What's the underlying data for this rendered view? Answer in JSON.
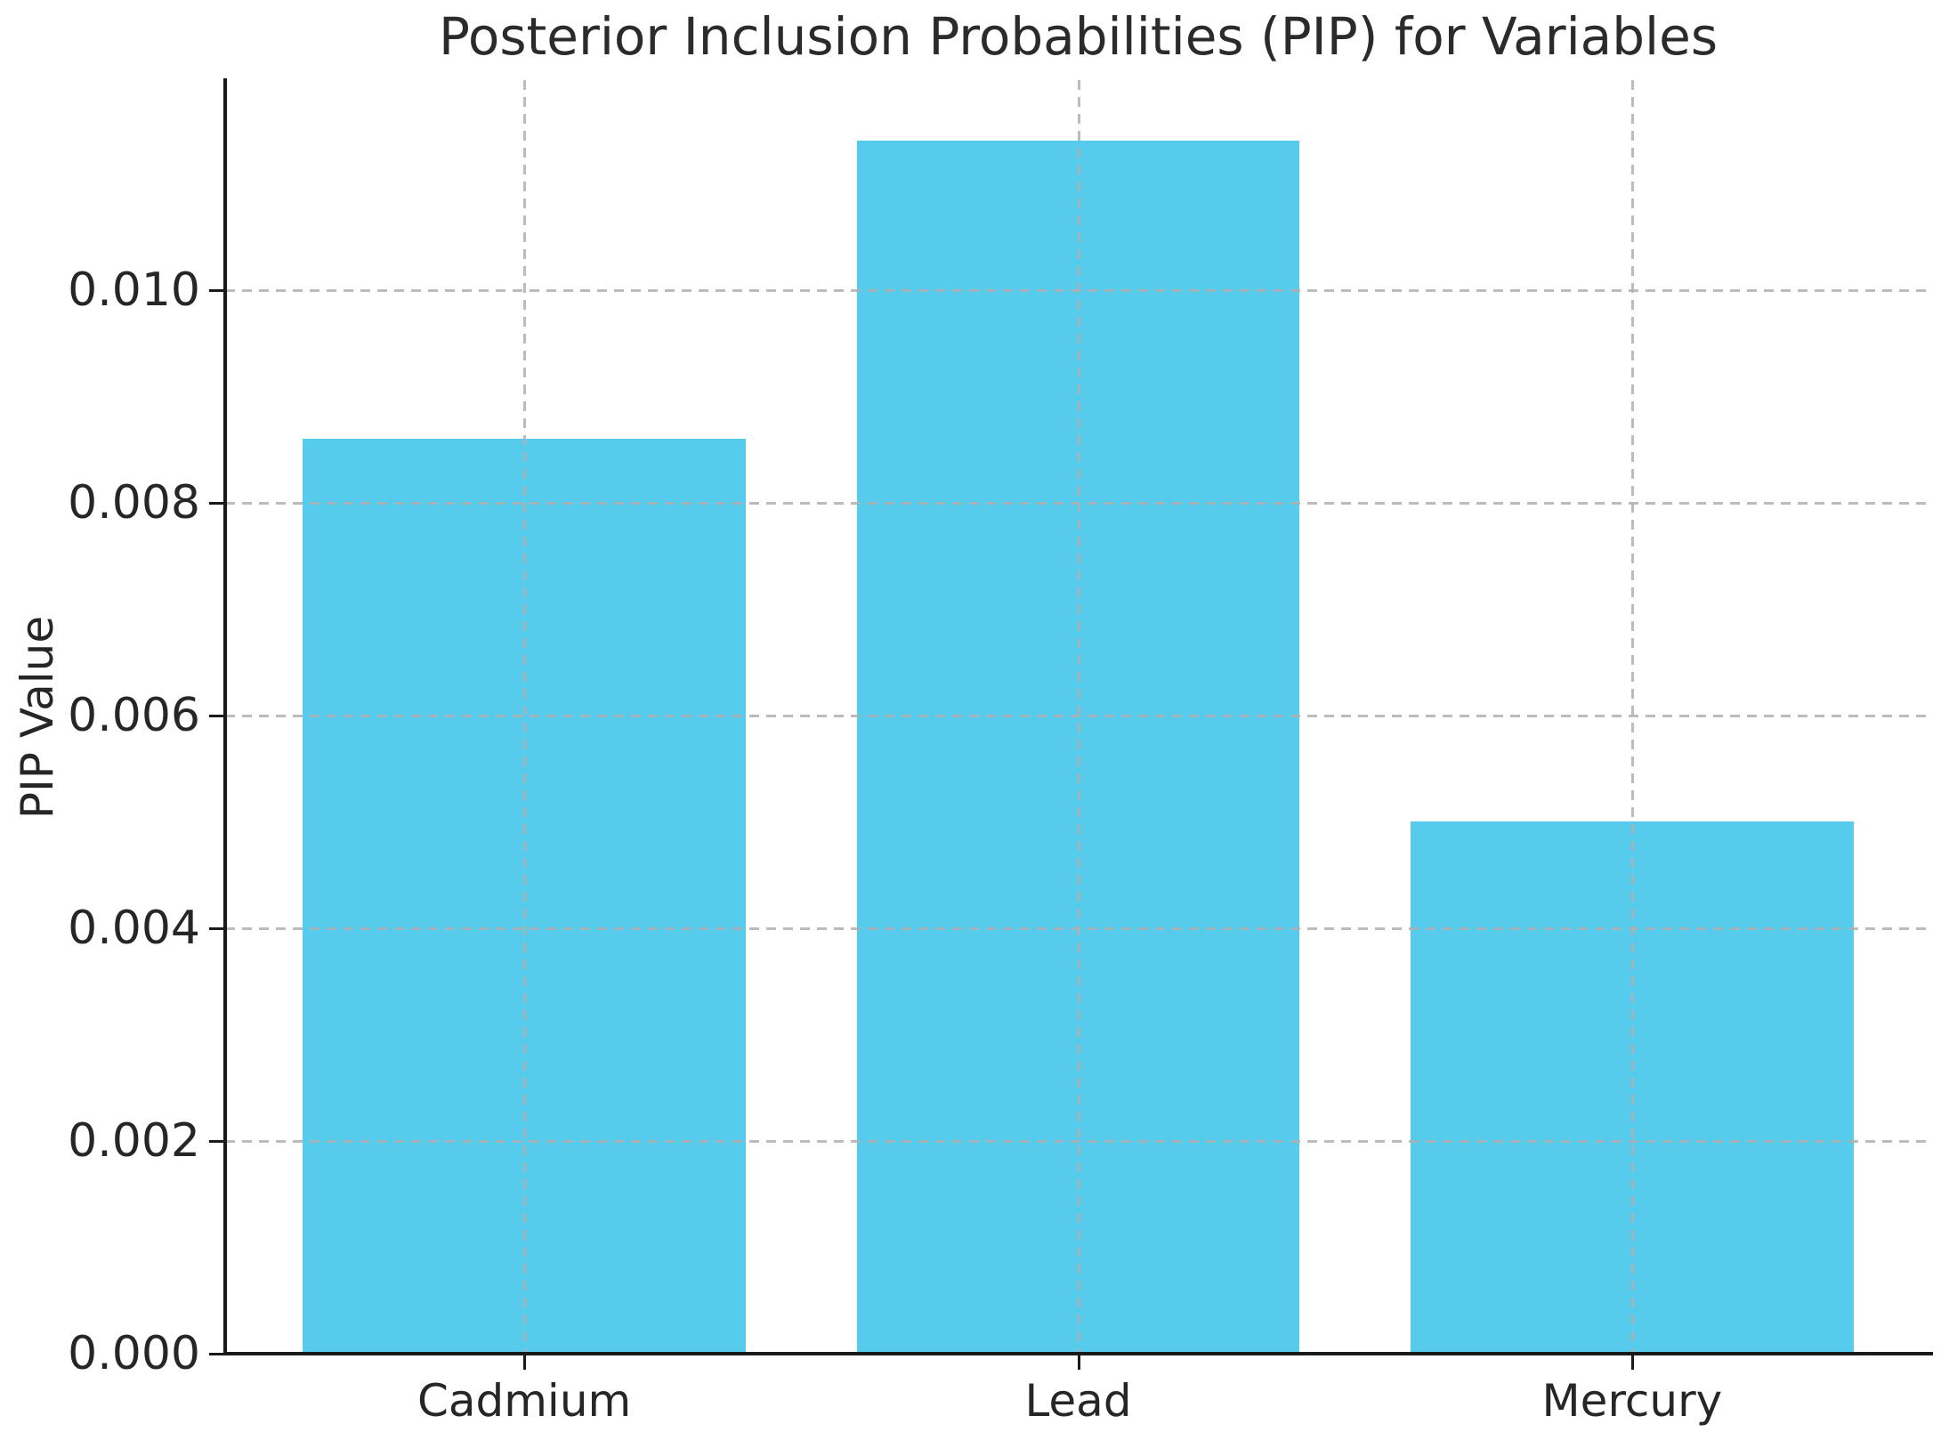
{
  "title": "Posterior Inclusion Probabilities (PIP) for Variables",
  "y_axis_label": "PIP Value",
  "chart_data": {
    "type": "bar",
    "title": "Posterior Inclusion Probabilities (PIP) for Variables",
    "xlabel": "",
    "ylabel": "PIP Value",
    "categories": [
      "Cadmium",
      "Lead",
      "Mercury"
    ],
    "values": [
      0.0086,
      0.0114,
      0.005
    ],
    "ylim": [
      0,
      0.01197
    ],
    "yticks": [
      0.0,
      0.002,
      0.004,
      0.006,
      0.008,
      0.01
    ],
    "ytick_labels": [
      "0.000",
      "0.002",
      "0.004",
      "0.006",
      "0.008",
      "0.010"
    ],
    "grid": true,
    "grid_style": "dashed",
    "bar_color": "#56CBEB",
    "bar_width_fraction": 0.8,
    "legend_position": "none"
  }
}
